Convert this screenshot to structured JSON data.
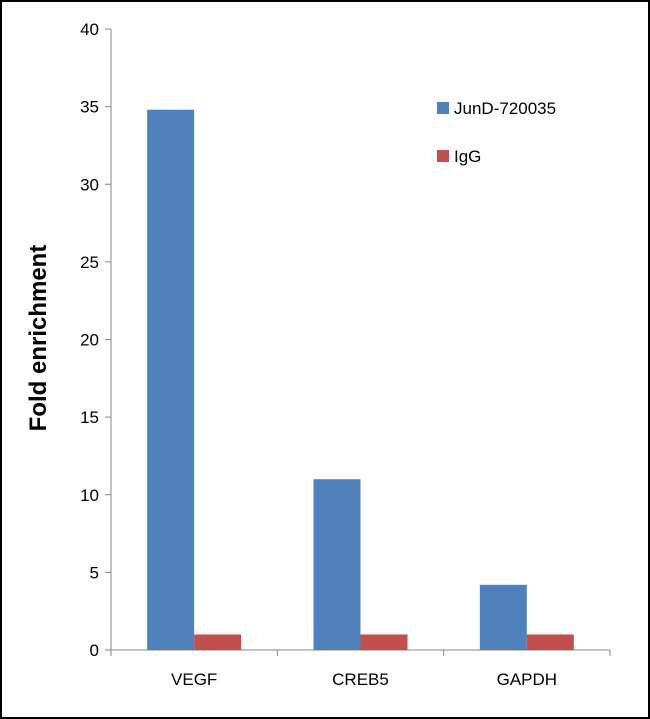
{
  "chart_data": {
    "type": "bar",
    "title": "",
    "xlabel": "",
    "ylabel": "Fold enrichment",
    "categories": [
      "VEGF",
      "CREB5",
      "GAPDH"
    ],
    "series": [
      {
        "name": "JunD-720035",
        "color": "#4F81BD",
        "values": [
          34.8,
          11.0,
          4.2
        ]
      },
      {
        "name": "IgG",
        "color": "#C0504D",
        "values": [
          1.0,
          1.0,
          1.0
        ]
      }
    ],
    "ylim": [
      0,
      40
    ],
    "yticks": [
      0,
      5,
      10,
      15,
      20,
      25,
      30,
      35,
      40
    ],
    "grid": false,
    "legend_position": "top-right"
  }
}
